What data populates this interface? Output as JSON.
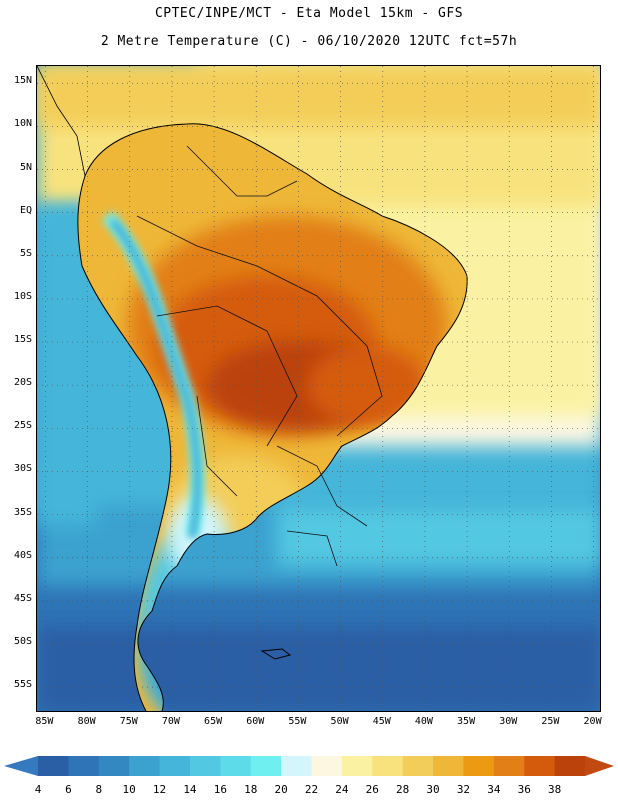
{
  "title": {
    "line1": "CPTEC/INPE/MCT -  Eta Model 15km - GFS",
    "line2": "2 Metre Temperature (C) - 06/10/2020 12UTC fct=57h"
  },
  "map": {
    "lon_range": [
      -86,
      -19
    ],
    "lat_range": [
      17,
      -58
    ],
    "lat_ticks": [
      "15N",
      "10N",
      "5N",
      "EQ",
      "5S",
      "10S",
      "15S",
      "20S",
      "25S",
      "30S",
      "35S",
      "40S",
      "45S",
      "50S",
      "55S"
    ],
    "lat_values": [
      15,
      10,
      5,
      0,
      -5,
      -10,
      -15,
      -20,
      -25,
      -30,
      -35,
      -40,
      -45,
      -50,
      -55
    ],
    "lon_ticks": [
      "85W",
      "80W",
      "75W",
      "70W",
      "65W",
      "60W",
      "55W",
      "50W",
      "45W",
      "40W",
      "35W",
      "30W",
      "25W",
      "20W"
    ],
    "lon_values": [
      -85,
      -80,
      -75,
      -70,
      -65,
      -60,
      -55,
      -50,
      -45,
      -40,
      -35,
      -30,
      -25,
      -20
    ],
    "gridline_style": "dotted"
  },
  "colorbar": {
    "labels": [
      "4",
      "6",
      "8",
      "10",
      "12",
      "14",
      "16",
      "18",
      "20",
      "22",
      "24",
      "26",
      "28",
      "30",
      "32",
      "34",
      "36",
      "38"
    ],
    "colors": [
      "#2a5fa5",
      "#2e74b6",
      "#3388c2",
      "#3ba1cf",
      "#45b5d9",
      "#52c8e2",
      "#5ddbe8",
      "#6feff0",
      "#d2f6fb",
      "#fdf7e2",
      "#faf2a2",
      "#f8e27d",
      "#f3cd59",
      "#eeb738",
      "#ec9a12",
      "#e27f16",
      "#d55b0c",
      "#bb420a"
    ],
    "under_color": "#3779bf",
    "over_color": "#c24a10"
  }
}
